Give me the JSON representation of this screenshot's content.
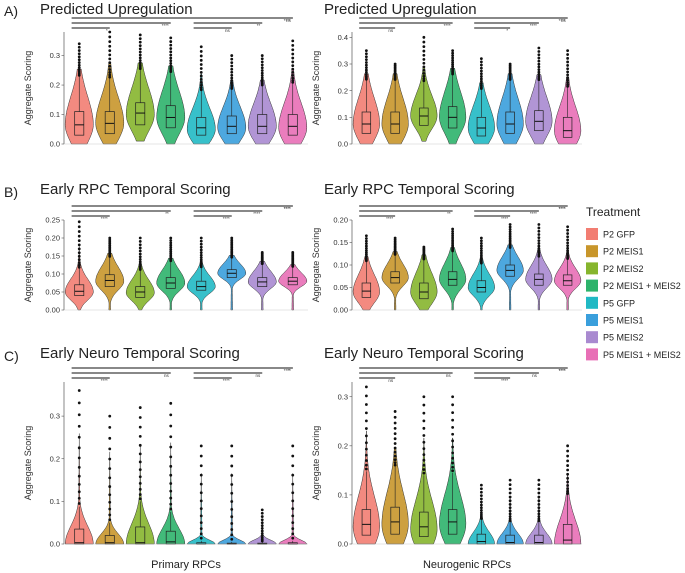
{
  "legend": {
    "title": "Treatment",
    "entries": [
      {
        "label": "P2 GFP",
        "color": "#F27D72"
      },
      {
        "label": "P2 MEIS1",
        "color": "#C8962B"
      },
      {
        "label": "P2 MEIS2",
        "color": "#86B52D"
      },
      {
        "label": "P2 MEIS1 + MEIS2",
        "color": "#2DB36B"
      },
      {
        "label": "P5 GFP",
        "color": "#21B9C4"
      },
      {
        "label": "P5 MEIS1",
        "color": "#3A9FDC"
      },
      {
        "label": "P5 MEIS2",
        "color": "#A98AD0"
      },
      {
        "label": "P5 MEIS1 + MEIS2",
        "color": "#E86FB6"
      }
    ]
  },
  "row_labels": [
    "A)",
    "B)",
    "C)"
  ],
  "column_labels": [
    "Primary RPCs",
    "Neurogenic RPCs"
  ],
  "chart_data": [
    {
      "type": "violin",
      "row": "A)",
      "column": "Primary RPCs",
      "title": "Predicted Upregulation",
      "ylabel": "Aggregate Scoring",
      "ylim": [
        0,
        0.38
      ],
      "yticks": [
        0.0,
        0.1,
        0.2,
        0.3
      ],
      "series": [
        {
          "name": "P2 GFP",
          "q1": 0.03,
          "median": 0.065,
          "q3": 0.11,
          "min": 0.0,
          "max": 0.34,
          "mode": 0.065
        },
        {
          "name": "P2 MEIS1",
          "q1": 0.035,
          "median": 0.07,
          "q3": 0.11,
          "min": 0.0,
          "max": 0.38,
          "mode": 0.07
        },
        {
          "name": "P2 MEIS2",
          "q1": 0.065,
          "median": 0.105,
          "q3": 0.14,
          "min": 0.01,
          "max": 0.37,
          "mode": 0.1
        },
        {
          "name": "P2 MEIS1 + MEIS2",
          "q1": 0.055,
          "median": 0.09,
          "q3": 0.13,
          "min": 0.0,
          "max": 0.36,
          "mode": 0.09
        },
        {
          "name": "P5 GFP",
          "q1": 0.03,
          "median": 0.055,
          "q3": 0.09,
          "min": 0.0,
          "max": 0.33,
          "mode": 0.05
        },
        {
          "name": "P5 MEIS1",
          "q1": 0.035,
          "median": 0.06,
          "q3": 0.095,
          "min": 0.0,
          "max": 0.3,
          "mode": 0.055
        },
        {
          "name": "P5 MEIS2",
          "q1": 0.035,
          "median": 0.06,
          "q3": 0.1,
          "min": 0.0,
          "max": 0.3,
          "mode": 0.06
        },
        {
          "name": "P5 MEIS1 + MEIS2",
          "q1": 0.03,
          "median": 0.06,
          "q3": 0.1,
          "min": 0.0,
          "max": 0.35,
          "mode": 0.055
        }
      ],
      "comparisons": [
        {
          "label": "****",
          "from": 0,
          "to": 7
        },
        {
          "label": "****",
          "from": 0,
          "to": 3
        },
        {
          "label": "*",
          "from": 0,
          "to": 1
        },
        {
          "label": "ns",
          "from": 4,
          "to": 7
        },
        {
          "label": "**",
          "from": 4,
          "to": 6
        },
        {
          "label": "ns",
          "from": 4,
          "to": 5
        }
      ]
    },
    {
      "type": "violin",
      "row": "A)",
      "column": "Neurogenic RPCs",
      "title": "Predicted Upregulation",
      "ylabel": "Aggregate Scoring",
      "ylim": [
        0,
        0.42
      ],
      "yticks": [
        0.0,
        0.1,
        0.2,
        0.3,
        0.4
      ],
      "series": [
        {
          "name": "P2 GFP",
          "q1": 0.04,
          "median": 0.075,
          "q3": 0.12,
          "min": 0.0,
          "max": 0.35,
          "mode": 0.075
        },
        {
          "name": "P2 MEIS1",
          "q1": 0.04,
          "median": 0.075,
          "q3": 0.12,
          "min": 0.0,
          "max": 0.3,
          "mode": 0.075
        },
        {
          "name": "P2 MEIS2",
          "q1": 0.07,
          "median": 0.105,
          "q3": 0.135,
          "min": 0.01,
          "max": 0.4,
          "mode": 0.105
        },
        {
          "name": "P2 MEIS1 + MEIS2",
          "q1": 0.06,
          "median": 0.1,
          "q3": 0.14,
          "min": 0.0,
          "max": 0.35,
          "mode": 0.1
        },
        {
          "name": "P5 GFP",
          "q1": 0.03,
          "median": 0.06,
          "q3": 0.1,
          "min": 0.0,
          "max": 0.32,
          "mode": 0.06
        },
        {
          "name": "P5 MEIS1",
          "q1": 0.04,
          "median": 0.075,
          "q3": 0.12,
          "min": 0.0,
          "max": 0.3,
          "mode": 0.075
        },
        {
          "name": "P5 MEIS2",
          "q1": 0.05,
          "median": 0.085,
          "q3": 0.125,
          "min": 0.0,
          "max": 0.36,
          "mode": 0.085
        },
        {
          "name": "P5 MEIS1 + MEIS2",
          "q1": 0.025,
          "median": 0.05,
          "q3": 0.1,
          "min": 0.0,
          "max": 0.35,
          "mode": 0.05
        }
      ],
      "comparisons": [
        {
          "label": "****",
          "from": 0,
          "to": 7
        },
        {
          "label": "****",
          "from": 0,
          "to": 3
        },
        {
          "label": "ns",
          "from": 0,
          "to": 1
        },
        {
          "label": "ns",
          "from": 4,
          "to": 7
        },
        {
          "label": "****",
          "from": 4,
          "to": 6
        },
        {
          "label": "*",
          "from": 4,
          "to": 5
        }
      ]
    },
    {
      "type": "violin",
      "row": "B)",
      "column": "Primary RPCs",
      "title": "Early RPC Temporal Scoring",
      "ylabel": "Aggregate Scoring",
      "ylim": [
        0,
        0.25
      ],
      "yticks": [
        0.0,
        0.05,
        0.1,
        0.15,
        0.2,
        0.25
      ],
      "series": [
        {
          "name": "P2 GFP",
          "q1": 0.04,
          "median": 0.052,
          "q3": 0.07,
          "min": 0.0,
          "max": 0.245,
          "mode": 0.05
        },
        {
          "name": "P2 MEIS1",
          "q1": 0.065,
          "median": 0.082,
          "q3": 0.098,
          "min": 0.0,
          "max": 0.2,
          "mode": 0.08
        },
        {
          "name": "P2 MEIS2",
          "q1": 0.035,
          "median": 0.05,
          "q3": 0.065,
          "min": 0.0,
          "max": 0.2,
          "mode": 0.048
        },
        {
          "name": "P2 MEIS1 + MEIS2",
          "q1": 0.06,
          "median": 0.075,
          "q3": 0.09,
          "min": 0.0,
          "max": 0.2,
          "mode": 0.075
        },
        {
          "name": "P5 GFP",
          "q1": 0.055,
          "median": 0.065,
          "q3": 0.08,
          "min": 0.0,
          "max": 0.2,
          "mode": 0.065
        },
        {
          "name": "P5 MEIS1",
          "q1": 0.09,
          "median": 0.102,
          "q3": 0.112,
          "min": 0.0,
          "max": 0.2,
          "mode": 0.102
        },
        {
          "name": "P5 MEIS2",
          "q1": 0.065,
          "median": 0.078,
          "q3": 0.09,
          "min": 0.0,
          "max": 0.16,
          "mode": 0.078
        },
        {
          "name": "P5 MEIS1 + MEIS2",
          "q1": 0.07,
          "median": 0.08,
          "q3": 0.09,
          "min": 0.0,
          "max": 0.16,
          "mode": 0.08
        }
      ],
      "comparisons": [
        {
          "label": "****",
          "from": 0,
          "to": 7
        },
        {
          "label": "**",
          "from": 0,
          "to": 3
        },
        {
          "label": "****",
          "from": 0,
          "to": 1
        },
        {
          "label": "****",
          "from": 4,
          "to": 7
        },
        {
          "label": "****",
          "from": 4,
          "to": 6
        },
        {
          "label": "****",
          "from": 4,
          "to": 5
        }
      ]
    },
    {
      "type": "violin",
      "row": "B)",
      "column": "Neurogenic RPCs",
      "title": "Early RPC Temporal Scoring",
      "ylabel": "Aggregate Scoring",
      "ylim": [
        0,
        0.2
      ],
      "yticks": [
        0.0,
        0.05,
        0.1,
        0.15,
        0.2
      ],
      "series": [
        {
          "name": "P2 GFP",
          "q1": 0.028,
          "median": 0.042,
          "q3": 0.06,
          "min": 0.0,
          "max": 0.165,
          "mode": 0.04
        },
        {
          "name": "P2 MEIS1",
          "q1": 0.06,
          "median": 0.072,
          "q3": 0.085,
          "min": 0.0,
          "max": 0.16,
          "mode": 0.072
        },
        {
          "name": "P2 MEIS2",
          "q1": 0.025,
          "median": 0.04,
          "q3": 0.06,
          "min": 0.0,
          "max": 0.14,
          "mode": 0.04
        },
        {
          "name": "P2 MEIS1 + MEIS2",
          "q1": 0.055,
          "median": 0.068,
          "q3": 0.085,
          "min": 0.0,
          "max": 0.18,
          "mode": 0.068
        },
        {
          "name": "P5 GFP",
          "q1": 0.04,
          "median": 0.05,
          "q3": 0.065,
          "min": 0.0,
          "max": 0.16,
          "mode": 0.05
        },
        {
          "name": "P5 MEIS1",
          "q1": 0.075,
          "median": 0.088,
          "q3": 0.1,
          "min": 0.0,
          "max": 0.19,
          "mode": 0.088
        },
        {
          "name": "P5 MEIS2",
          "q1": 0.055,
          "median": 0.068,
          "q3": 0.08,
          "min": 0.0,
          "max": 0.19,
          "mode": 0.068
        },
        {
          "name": "P5 MEIS1 + MEIS2",
          "q1": 0.055,
          "median": 0.065,
          "q3": 0.078,
          "min": 0.0,
          "max": 0.185,
          "mode": 0.065
        }
      ],
      "comparisons": [
        {
          "label": "****",
          "from": 0,
          "to": 7
        },
        {
          "label": "**",
          "from": 0,
          "to": 3
        },
        {
          "label": "****",
          "from": 0,
          "to": 1
        },
        {
          "label": "****",
          "from": 4,
          "to": 7
        },
        {
          "label": "****",
          "from": 4,
          "to": 6
        },
        {
          "label": "****",
          "from": 4,
          "to": 5
        }
      ]
    },
    {
      "type": "violin",
      "row": "C)",
      "column": "Primary RPCs",
      "title": "Early Neuro Temporal Scoring",
      "ylabel": "Aggregate Scoring",
      "xlabel": "Primary RPCs",
      "ylim": [
        0,
        0.38
      ],
      "yticks": [
        0.0,
        0.1,
        0.2,
        0.3
      ],
      "series": [
        {
          "name": "P2 GFP",
          "q1": 0.0,
          "median": 0.003,
          "q3": 0.035,
          "min": 0.0,
          "max": 0.36,
          "mode": 0.0
        },
        {
          "name": "P2 MEIS1",
          "q1": 0.0,
          "median": 0.003,
          "q3": 0.02,
          "min": 0.0,
          "max": 0.3,
          "mode": 0.0
        },
        {
          "name": "P2 MEIS2",
          "q1": 0.0,
          "median": 0.003,
          "q3": 0.04,
          "min": 0.0,
          "max": 0.32,
          "mode": 0.0
        },
        {
          "name": "P2 MEIS1 + MEIS2",
          "q1": 0.0,
          "median": 0.005,
          "q3": 0.03,
          "min": 0.0,
          "max": 0.33,
          "mode": 0.0
        },
        {
          "name": "P5 GFP",
          "q1": 0.0,
          "median": 0.0,
          "q3": 0.003,
          "min": 0.0,
          "max": 0.23,
          "mode": 0.0
        },
        {
          "name": "P5 MEIS1",
          "q1": 0.0,
          "median": 0.0,
          "q3": 0.002,
          "min": 0.0,
          "max": 0.23,
          "mode": 0.0
        },
        {
          "name": "P5 MEIS2",
          "q1": 0.0,
          "median": 0.0,
          "q3": 0.002,
          "min": 0.0,
          "max": 0.08,
          "mode": 0.0
        },
        {
          "name": "P5 MEIS1 + MEIS2",
          "q1": 0.0,
          "median": 0.0,
          "q3": 0.003,
          "min": 0.0,
          "max": 0.23,
          "mode": 0.0
        }
      ],
      "comparisons": [
        {
          "label": "****",
          "from": 0,
          "to": 7
        },
        {
          "label": "ns",
          "from": 0,
          "to": 3
        },
        {
          "label": "****",
          "from": 0,
          "to": 1
        },
        {
          "label": "**",
          "from": 4,
          "to": 7
        },
        {
          "label": "ns",
          "from": 4,
          "to": 6
        },
        {
          "label": "****",
          "from": 4,
          "to": 5
        }
      ]
    },
    {
      "type": "violin",
      "row": "C)",
      "column": "Neurogenic RPCs",
      "title": "Early Neuro Temporal Scoring",
      "ylabel": "Aggregate Scoring",
      "xlabel": "Neurogenic RPCs",
      "ylim": [
        0,
        0.33
      ],
      "yticks": [
        0.0,
        0.1,
        0.2,
        0.3
      ],
      "series": [
        {
          "name": "P2 GFP",
          "q1": 0.018,
          "median": 0.04,
          "q3": 0.07,
          "min": 0.0,
          "max": 0.32,
          "mode": 0.035
        },
        {
          "name": "P2 MEIS1",
          "q1": 0.02,
          "median": 0.045,
          "q3": 0.075,
          "min": 0.0,
          "max": 0.27,
          "mode": 0.04
        },
        {
          "name": "P2 MEIS2",
          "q1": 0.015,
          "median": 0.035,
          "q3": 0.065,
          "min": 0.0,
          "max": 0.3,
          "mode": 0.03
        },
        {
          "name": "P2 MEIS1 + MEIS2",
          "q1": 0.02,
          "median": 0.045,
          "q3": 0.07,
          "min": 0.0,
          "max": 0.3,
          "mode": 0.04
        },
        {
          "name": "P5 GFP",
          "q1": 0.0,
          "median": 0.005,
          "q3": 0.02,
          "min": 0.0,
          "max": 0.12,
          "mode": 0.0
        },
        {
          "name": "P5 MEIS1",
          "q1": 0.0,
          "median": 0.003,
          "q3": 0.018,
          "min": 0.0,
          "max": 0.13,
          "mode": 0.0
        },
        {
          "name": "P5 MEIS2",
          "q1": 0.0,
          "median": 0.003,
          "q3": 0.018,
          "min": 0.0,
          "max": 0.13,
          "mode": 0.0
        },
        {
          "name": "P5 MEIS1 + MEIS2",
          "q1": 0.0,
          "median": 0.008,
          "q3": 0.04,
          "min": 0.0,
          "max": 0.2,
          "mode": 0.0
        }
      ],
      "comparisons": [
        {
          "label": "****",
          "from": 0,
          "to": 7
        },
        {
          "label": "ns",
          "from": 0,
          "to": 3
        },
        {
          "label": "ns",
          "from": 0,
          "to": 1
        },
        {
          "label": "****",
          "from": 4,
          "to": 7
        },
        {
          "label": "ns",
          "from": 4,
          "to": 6
        },
        {
          "label": "****",
          "from": 4,
          "to": 5
        }
      ]
    }
  ]
}
